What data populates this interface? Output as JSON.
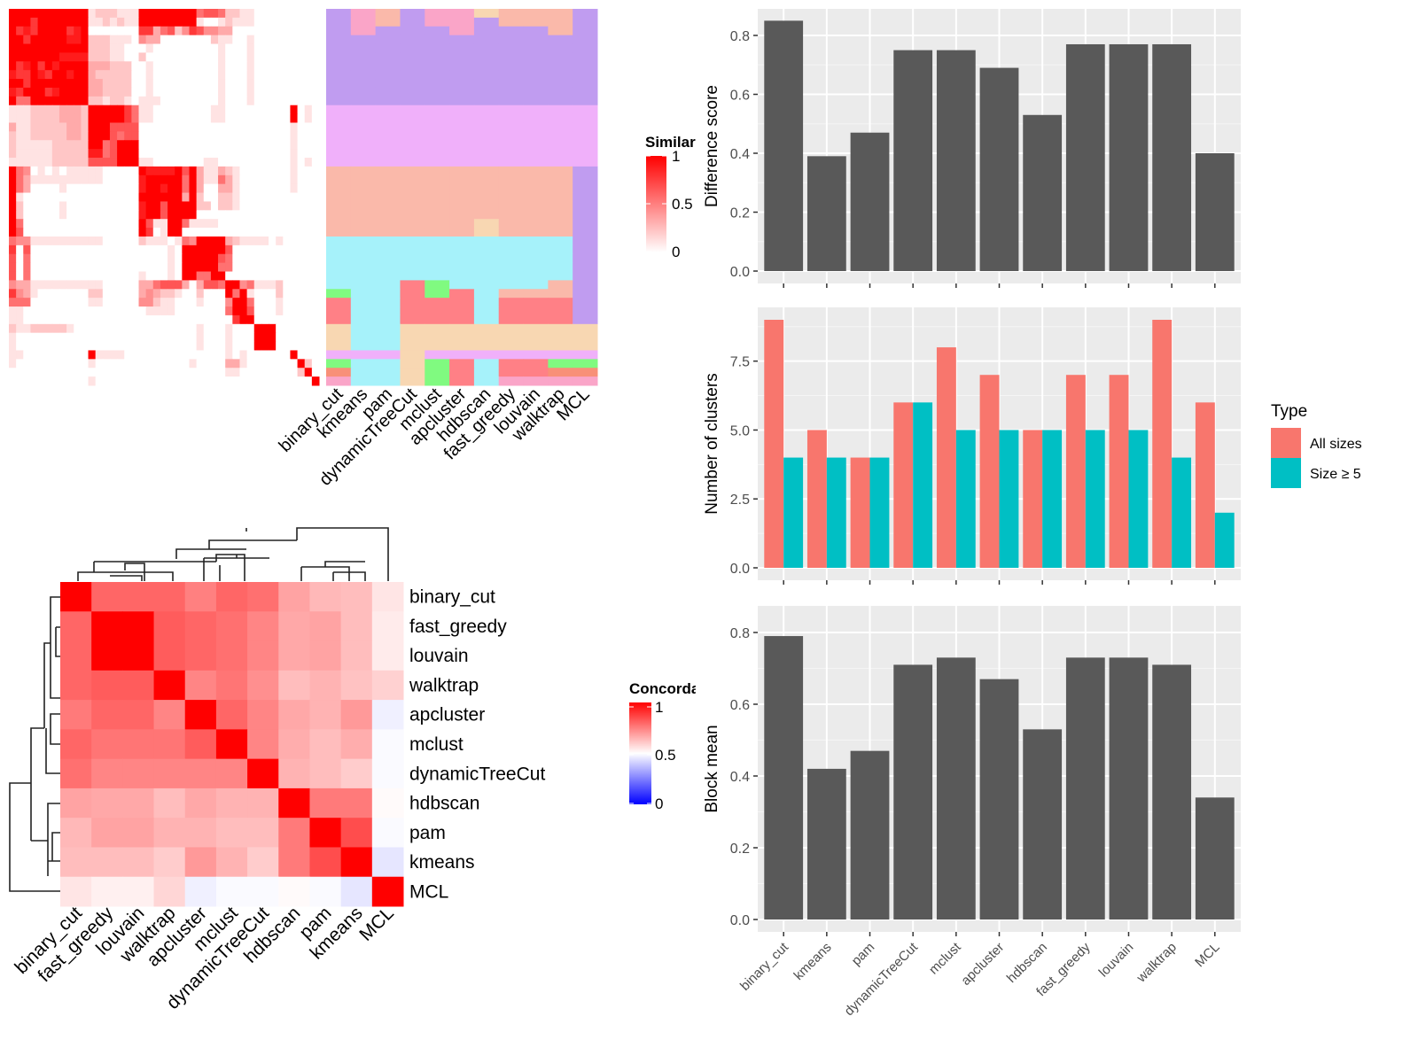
{
  "chart_data": [
    {
      "type": "heatmap",
      "legend_title": "Similarity",
      "legend_ticks": [
        "1",
        "0.5",
        "0"
      ],
      "color_scale": {
        "low": "#FFFFFF",
        "high": "#FF0000"
      },
      "similarity_rows_tenths": [
        "9999999999912221119999999956652211000000000",
        "9997999999911212119999999910012111000000000",
        "9787999978900000007735624764433000000000000",
        "9979999988922211104330000000211001000000000",
        "9999999999922211000100000000010001000000000",
        "9999999888822211002000000000010001000000000",
        "9789798999933322200100000000010001000000000",
        "8779879989932222200100000000010001000000000",
        "9979999999933222200100000000010001000000000",
        "8799978999933222200100000000010001000000000",
        "9559999999922122101110000000010001000000000",
        "1112222333299999751100000000110000000009010",
        "1112222333299999751100000000110000000009010",
        "3112222233299966660000000000000000000001000",
        "2112222233299965660000000000000000000001000",
        "2111112222299569990000000000000000000001000",
        "2111112222288569990000000000000000000001000",
        "1111112222266669991100000001100000000001010",
        "9540101011111000009888896931132100000001000",
        "9531111111111000008999995931153100000001000",
        "9530000100000000008998995930033100000001000",
        "9100000000000000009999993920022100000000000",
        "9200000100000000008996999922022100000000000",
        "9200000100000000008996999900000000000000000",
        "9500000000000000009611995111100000000000000",
        "9600000000000000009701990000000000000000000",
        "5441111111111000002111015499993211110100000",
        "7060000000000000000000109999996000000000000",
        "6050000000000000000000109999965000000000000",
        "6050000000000000000000109999955000000000000",
        "6050000000000000001000109955990000000000000",
        "4331111111111000003356663036659945111200000",
        "7431000000022000003432210020009591000200000",
        "5550000000011000004421100010004995000100000",
        "1100000000000000000111100000005996000100000",
        "1100000000000000000000000000000799000000000",
        "2112222210000000000000000010001000999000000",
        "1000000000000000000000000010001000999000000",
        "1000000000000000000000000010001000999000000",
        "1100000000091111000000000000001010000009000",
        "1000000000010000000000000100003310000000920",
        "0000000000000000000000000000001100000000290",
        "0000000000010000000000000000000000000000009"
      ],
      "annotation": {
        "columns": [
          "binary_cut",
          "kmeans",
          "pam",
          "dynamicTreeCut",
          "mclust",
          "apcluster",
          "hdbscan",
          "fast_greedy",
          "louvain",
          "walktrap",
          "MCL"
        ],
        "palette": {
          "A": "#C09CF0",
          "B": "#F0B0FA",
          "C": "#FAB9AA",
          "D": "#A6F2FA",
          "E": "#FF8086",
          "F": "#80FA80",
          "G": "#F8D7B2",
          "H": "#FAA5C8",
          "I": "#F89078"
        },
        "rows": [
          "AHCAHHGCCCA",
          "AHCAHHACCCA",
          "AHAAAHAAACA",
          "AAAAAAAAAAA",
          "AAAAAAAAAAA",
          "AAAAAAAAAAA",
          "AAAAAAAAAAA",
          "AAAAAAAAAAA",
          "AAAAAAAAAAA",
          "AAAAAAAAAAA",
          "AAAAAAAAAAA",
          "BBBBBBBBBBB",
          "BBBBBBBBBBB",
          "BBBBBBBBBBB",
          "BBBBBBBBBBB",
          "BBBBBBBBBBB",
          "BBBBBBBBBBB",
          "BBBBBBBBBBB",
          "CCCCCCCCCCA",
          "CCCCCCCCCCA",
          "CCCCCCCCCCA",
          "CCCCCCCCCCA",
          "CCCCCCCCCCA",
          "CCCCCCCCCCA",
          "CCCCCCGCCCA",
          "CCCCCCGCCCA",
          "DDDDDDDDDDA",
          "DDDDDDDDDDA",
          "DDDDDDDDDDA",
          "DDDDDDDDDDA",
          "DDDDDDDDDDA",
          "DDDEFDDDDCA",
          "FDDEFEDCCCA",
          "EDDEEEDEEEA",
          "EDDEEEDEEEA",
          "EDDEEEDEEEA",
          "GDDGGGGGGGG",
          "GDDGGGGGGGG",
          "GDDGGGGGGGG",
          "BBBGBBBBBBB",
          "FDDGFEDEEFF",
          "IDDGFEDEEII",
          "HDDGFEDHHHH"
        ]
      }
    },
    {
      "type": "heatmap",
      "legend_title": "Concordance",
      "legend_ticks": [
        "1",
        "0.5",
        "0"
      ],
      "color_scale": {
        "low": "#0000FF",
        "mid": "#FFFFFF",
        "high": "#FF0000",
        "midpoint": 0.5
      },
      "labels": [
        "binary_cut",
        "fast_greedy",
        "louvain",
        "walktrap",
        "apcluster",
        "mclust",
        "dynamicTreeCut",
        "hdbscan",
        "pam",
        "kmeans",
        "MCL"
      ],
      "values": [
        [
          1.0,
          0.8,
          0.8,
          0.8,
          0.75,
          0.8,
          0.78,
          0.68,
          0.64,
          0.63,
          0.55
        ],
        [
          0.8,
          1.0,
          1.0,
          0.82,
          0.8,
          0.78,
          0.74,
          0.67,
          0.68,
          0.63,
          0.54
        ],
        [
          0.8,
          1.0,
          1.0,
          0.82,
          0.8,
          0.78,
          0.74,
          0.67,
          0.68,
          0.63,
          0.54
        ],
        [
          0.8,
          0.82,
          0.82,
          1.0,
          0.74,
          0.77,
          0.72,
          0.63,
          0.65,
          0.62,
          0.59
        ],
        [
          0.76,
          0.8,
          0.8,
          0.74,
          1.0,
          0.8,
          0.74,
          0.67,
          0.65,
          0.7,
          0.47
        ],
        [
          0.8,
          0.77,
          0.77,
          0.77,
          0.82,
          1.0,
          0.74,
          0.66,
          0.63,
          0.66,
          0.49
        ],
        [
          0.78,
          0.74,
          0.74,
          0.74,
          0.74,
          0.74,
          1.0,
          0.65,
          0.63,
          0.6,
          0.49
        ],
        [
          0.68,
          0.67,
          0.67,
          0.63,
          0.67,
          0.65,
          0.65,
          1.0,
          0.76,
          0.76,
          0.51
        ],
        [
          0.64,
          0.68,
          0.68,
          0.65,
          0.65,
          0.63,
          0.63,
          0.76,
          1.0,
          0.85,
          0.49
        ],
        [
          0.63,
          0.63,
          0.63,
          0.6,
          0.7,
          0.65,
          0.6,
          0.76,
          0.85,
          1.0,
          0.45
        ],
        [
          0.55,
          0.53,
          0.53,
          0.58,
          0.47,
          0.49,
          0.49,
          0.51,
          0.49,
          0.45,
          1.0
        ]
      ]
    },
    {
      "type": "bar",
      "categories": [
        "binary_cut",
        "kmeans",
        "pam",
        "dynamicTreeCut",
        "mclust",
        "apcluster",
        "hdbscan",
        "fast_greedy",
        "louvain",
        "walktrap",
        "MCL"
      ],
      "values": [
        0.85,
        0.39,
        0.47,
        0.75,
        0.75,
        0.69,
        0.53,
        0.77,
        0.77,
        0.77,
        0.4
      ],
      "ylabel": "Difference score",
      "ylim": [
        0,
        0.8
      ],
      "yticks": [
        "0.0",
        "0.2",
        "0.4",
        "0.6",
        "0.8"
      ],
      "bar_color": "#595959",
      "grid": true
    },
    {
      "type": "bar",
      "categories": [
        "binary_cut",
        "kmeans",
        "pam",
        "dynamicTreeCut",
        "mclust",
        "apcluster",
        "hdbscan",
        "fast_greedy",
        "louvain",
        "walktrap",
        "MCL"
      ],
      "series": [
        {
          "name": "All sizes",
          "color": "#F8766D",
          "values": [
            9,
            5,
            4,
            6,
            8,
            7,
            5,
            7,
            7,
            9,
            6
          ]
        },
        {
          "name": "Size ≥ 5",
          "color": "#00BFC4",
          "values": [
            4,
            4,
            4,
            6,
            5,
            5,
            5,
            5,
            5,
            4,
            2
          ]
        }
      ],
      "ylabel": "Number of clusters",
      "ylim": [
        0,
        9
      ],
      "yticks": [
        "0.0",
        "2.5",
        "5.0",
        "7.5"
      ],
      "legend_title": "Type",
      "legend_position": "right",
      "grid": true
    },
    {
      "type": "bar",
      "categories": [
        "binary_cut",
        "kmeans",
        "pam",
        "dynamicTreeCut",
        "mclust",
        "apcluster",
        "hdbscan",
        "fast_greedy",
        "louvain",
        "walktrap",
        "MCL"
      ],
      "values": [
        0.79,
        0.42,
        0.47,
        0.71,
        0.73,
        0.67,
        0.53,
        0.73,
        0.73,
        0.71,
        0.34
      ],
      "ylabel": "Block mean",
      "ylim": [
        0,
        0.8
      ],
      "yticks": [
        "0.0",
        "0.2",
        "0.4",
        "0.6",
        "0.8"
      ],
      "bar_color": "#595959",
      "grid": true
    }
  ]
}
